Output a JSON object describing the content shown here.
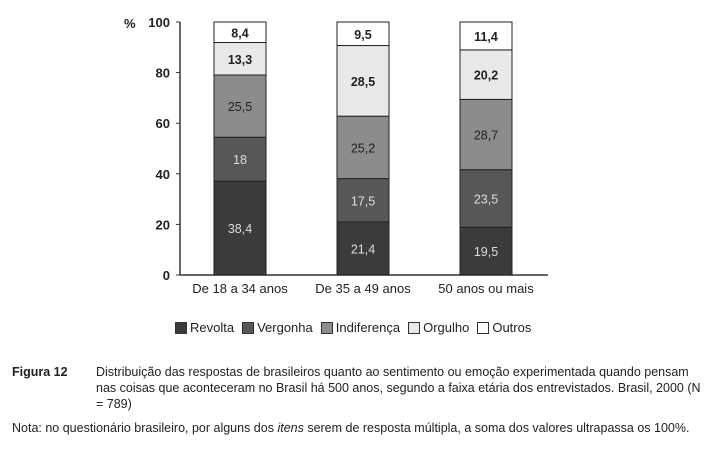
{
  "chart_data": {
    "type": "bar",
    "stacked": true,
    "ylabel": "%",
    "ylim": [
      0,
      100
    ],
    "yticks": [
      "0",
      "20",
      "40",
      "60",
      "80",
      "100"
    ],
    "categories": [
      "De 18 a 34 anos",
      "De 35 a 49 anos",
      "50 anos ou mais"
    ],
    "series": [
      {
        "name": "Revolta",
        "values": [
          38.4,
          21.4,
          19.5
        ],
        "labels": [
          "38,4",
          "21,4",
          "19,5"
        ],
        "color": "#3b3b3b"
      },
      {
        "name": "Vergonha",
        "values": [
          18,
          17.5,
          23.5
        ],
        "labels": [
          "18",
          "17,5",
          "23,5"
        ],
        "color": "#575757"
      },
      {
        "name": "Indiferença",
        "values": [
          25.5,
          25.2,
          28.7
        ],
        "labels": [
          "25,5",
          "25,2",
          "28,7"
        ],
        "color": "#8c8c8c"
      },
      {
        "name": "Orgulho",
        "values": [
          13.3,
          28.5,
          20.2
        ],
        "labels": [
          "13,3",
          "28,5",
          "20,2"
        ],
        "color": "#e9e9e9"
      },
      {
        "name": "Outros",
        "values": [
          8.4,
          9.5,
          11.4
        ],
        "labels": [
          "8,4",
          "9,5",
          "11,4"
        ],
        "color": "#ffffff"
      }
    ],
    "legend_position": "bottom",
    "grid": false
  },
  "caption": {
    "label": "Figura 12",
    "text": "Distribuição das respostas de brasileiros quanto ao sentimento ou emoção experimentada quando pensam nas coisas que aconteceram no Brasil há 500 anos, segundo a faixa etária dos entrevistados. Brasil, 2000 (N = 789)"
  },
  "note": {
    "prefix": "Nota: no questionário brasileiro, por alguns dos ",
    "italic": "itens",
    "suffix": " serem de resposta múltipla, a soma dos valores ultrapassa os 100%."
  }
}
